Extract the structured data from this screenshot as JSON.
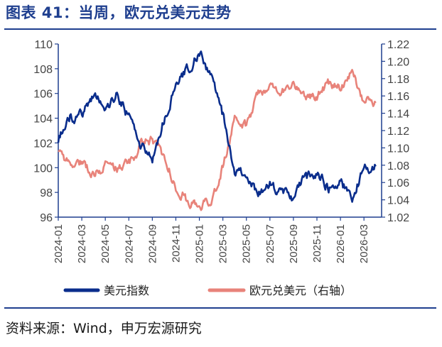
{
  "header": {
    "title": "图表 41：当周，欧元兑美元走势"
  },
  "footer": {
    "source": "资料来源：Wind，申万宏源研究"
  },
  "colors": {
    "accent": "#1f3f8f",
    "dxy": "#0a2d8c",
    "eurusd": "#e8837a",
    "axis": "#1f3f8f"
  },
  "chart_data": {
    "type": "line",
    "title": "",
    "xlabel": "",
    "ylabel": "",
    "legend_position": "bottom",
    "grid": false,
    "x_ticks": [
      "2024-01",
      "2024-03",
      "2024-05",
      "2024-07",
      "2024-09",
      "2024-11",
      "2025-01",
      "2025-03",
      "2025-05",
      "2025-07",
      "2025-09",
      "2025-11",
      "2026-01",
      "2026-03"
    ],
    "y_left": {
      "min": 96,
      "max": 110,
      "ticks": [
        "96",
        "98",
        "100",
        "102",
        "104",
        "106",
        "108",
        "110"
      ]
    },
    "y_right": {
      "min": 1.02,
      "max": 1.22,
      "ticks": [
        "1.02",
        "1.04",
        "1.06",
        "1.08",
        "1.10",
        "1.12",
        "1.14",
        "1.16",
        "1.18",
        "1.20",
        "1.22"
      ]
    },
    "series": [
      {
        "name": "美元指数",
        "axis": "left",
        "x": [
          "2024-01",
          "2024-02",
          "2024-03",
          "2024-04",
          "2024-05",
          "2024-06",
          "2024-07",
          "2024-08",
          "2024-09",
          "2024-10",
          "2024-11",
          "2024-12",
          "2025-01",
          "2025-02",
          "2025-03",
          "2025-04",
          "2025-05",
          "2025-06",
          "2025-07",
          "2025-08",
          "2025-09",
          "2025-10",
          "2025-11",
          "2025-12",
          "2026-01",
          "2026-02",
          "2026-03",
          "2026-04"
        ],
        "values": [
          102.3,
          104.0,
          104.3,
          106.0,
          104.8,
          105.8,
          104.2,
          101.8,
          100.8,
          103.8,
          106.5,
          108.0,
          109.2,
          107.4,
          104.2,
          99.6,
          99.6,
          97.8,
          98.6,
          97.9,
          97.6,
          99.2,
          99.6,
          98.4,
          98.8,
          97.7,
          99.8,
          100.1
        ]
      },
      {
        "name": "欧元兑美元（右轴）",
        "axis": "right",
        "x": [
          "2024-01",
          "2024-02",
          "2024-03",
          "2024-04",
          "2024-05",
          "2024-06",
          "2024-07",
          "2024-08",
          "2024-09",
          "2024-10",
          "2024-11",
          "2024-12",
          "2025-01",
          "2025-02",
          "2025-03",
          "2025-04",
          "2025-05",
          "2025-06",
          "2025-07",
          "2025-08",
          "2025-09",
          "2025-10",
          "2025-11",
          "2025-12",
          "2026-01",
          "2026-02",
          "2026-03",
          "2026-04"
        ],
        "values": [
          1.095,
          1.08,
          1.085,
          1.07,
          1.08,
          1.075,
          1.082,
          1.102,
          1.11,
          1.09,
          1.055,
          1.04,
          1.03,
          1.04,
          1.078,
          1.13,
          1.125,
          1.165,
          1.17,
          1.165,
          1.175,
          1.16,
          1.16,
          1.175,
          1.17,
          1.19,
          1.155,
          1.152
        ]
      }
    ]
  }
}
